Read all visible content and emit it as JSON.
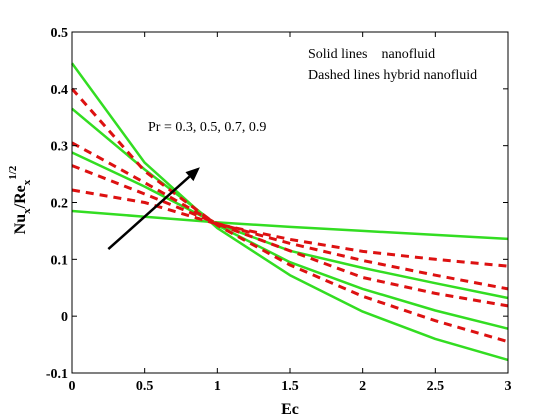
{
  "chart_data": {
    "type": "line",
    "xlabel": "Ec",
    "ylabel_main": "Nu",
    "ylabel_sub1": "x",
    "ylabel_mid": "/Re",
    "ylabel_sub2": "x",
    "ylabel_sup": "1/2",
    "xlim": [
      0,
      3
    ],
    "ylim": [
      -0.1,
      0.5
    ],
    "xticks": [
      "0",
      "0.5",
      "1",
      "1.5",
      "2",
      "2.5",
      "3"
    ],
    "yticks": [
      "-0.1",
      "0",
      "0.1",
      "0.2",
      "0.3",
      "0.4",
      "0.5"
    ],
    "grid": false,
    "legend": {
      "position": "top-right",
      "line1": "Solid lines    nanofluid",
      "line2": "Dashed lines hybrid nanofluid"
    },
    "annotation": {
      "text": "Pr = 0.3, 0.5, 0.7, 0.9",
      "arrow_from": [
        0.25,
        0.118
      ],
      "arrow_to": [
        0.88,
        0.262
      ]
    },
    "x": [
      0,
      0.5,
      1,
      1.5,
      2,
      2.5,
      3
    ],
    "series": [
      {
        "style": "solid",
        "color": "#33dd22",
        "values": [
          0.185,
          0.175,
          0.165,
          0.157,
          0.15,
          0.143,
          0.136
        ]
      },
      {
        "style": "solid",
        "color": "#33dd22",
        "values": [
          0.288,
          0.228,
          0.162,
          0.115,
          0.085,
          0.058,
          0.032
        ]
      },
      {
        "style": "solid",
        "color": "#33dd22",
        "values": [
          0.365,
          0.258,
          0.16,
          0.095,
          0.048,
          0.01,
          -0.022
        ]
      },
      {
        "style": "solid",
        "color": "#33dd22",
        "values": [
          0.445,
          0.27,
          0.155,
          0.072,
          0.008,
          -0.04,
          -0.077
        ]
      },
      {
        "style": "dashed",
        "color": "#dd1111",
        "values": [
          0.222,
          0.2,
          0.162,
          0.135,
          0.114,
          0.1,
          0.088
        ]
      },
      {
        "style": "dashed",
        "color": "#dd1111",
        "values": [
          0.265,
          0.215,
          0.163,
          0.128,
          0.098,
          0.072,
          0.048
        ]
      },
      {
        "style": "dashed",
        "color": "#dd1111",
        "values": [
          0.305,
          0.235,
          0.162,
          0.115,
          0.068,
          0.04,
          0.018
        ]
      },
      {
        "style": "dashed",
        "color": "#dd1111",
        "values": [
          0.4,
          0.255,
          0.16,
          0.09,
          0.035,
          -0.008,
          -0.045
        ]
      }
    ]
  }
}
